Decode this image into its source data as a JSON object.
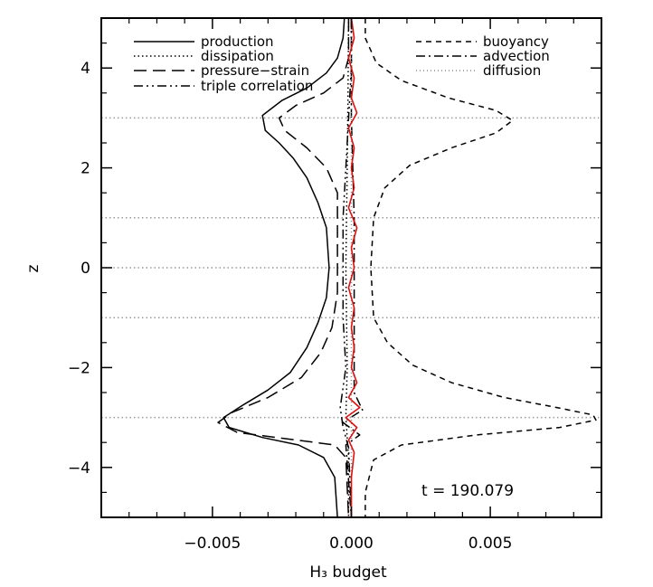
{
  "chart_data": {
    "type": "line",
    "title": "",
    "xlabel": "H₃ budget",
    "ylabel": "z",
    "xlim": [
      -0.009,
      0.009
    ],
    "ylim": [
      -5,
      5
    ],
    "grid": "horizontal dotted at integer z",
    "annotation": "t  =  190.079",
    "x_ticks": [
      "−0.005",
      "0.000",
      "0.005"
    ],
    "y_ticks": [
      "−4",
      "−2",
      "0",
      "2",
      "4"
    ],
    "legend_left": [
      "production",
      "dissipation",
      "pressure−strain",
      "triple correlation"
    ],
    "legend_right": [
      "buoyancy",
      "advection",
      "diffusion"
    ],
    "series": [
      {
        "name": "production",
        "style": "solid",
        "color": "#000000",
        "points": [
          [
            -0.00025,
            5
          ],
          [
            -0.0003,
            4.6
          ],
          [
            -0.0005,
            4.2
          ],
          [
            -0.0009,
            3.9
          ],
          [
            -0.0016,
            3.6
          ],
          [
            -0.0025,
            3.35
          ],
          [
            -0.0032,
            3.05
          ],
          [
            -0.0031,
            2.75
          ],
          [
            -0.0026,
            2.5
          ],
          [
            -0.0021,
            2.2
          ],
          [
            -0.0016,
            1.8
          ],
          [
            -0.0012,
            1.3
          ],
          [
            -0.0009,
            0.8
          ],
          [
            -0.0008,
            0.0
          ],
          [
            -0.0009,
            -0.6
          ],
          [
            -0.0012,
            -1.1
          ],
          [
            -0.0016,
            -1.6
          ],
          [
            -0.0022,
            -2.1
          ],
          [
            -0.003,
            -2.45
          ],
          [
            -0.0039,
            -2.75
          ],
          [
            -0.0046,
            -3.0
          ],
          [
            -0.0044,
            -3.2
          ],
          [
            -0.0032,
            -3.4
          ],
          [
            -0.0019,
            -3.55
          ],
          [
            -0.001,
            -3.8
          ],
          [
            -0.0006,
            -4.2
          ],
          [
            -0.0005,
            -5
          ]
        ]
      },
      {
        "name": "dissipation",
        "style": "dotted",
        "color": "#000000",
        "points": [
          [
            -0.0001,
            5
          ],
          [
            -0.00012,
            3.5
          ],
          [
            -0.00015,
            2
          ],
          [
            -0.0002,
            0
          ],
          [
            -0.00015,
            -2
          ],
          [
            -0.0002,
            -3
          ],
          [
            -0.0001,
            -3.8
          ],
          [
            -0.0001,
            -5
          ]
        ]
      },
      {
        "name": "pressure−strain",
        "style": "dashed",
        "color": "#000000",
        "points": [
          [
            -0.0001,
            5
          ],
          [
            -0.0001,
            4.2
          ],
          [
            -0.0003,
            3.8
          ],
          [
            -0.001,
            3.5
          ],
          [
            -0.002,
            3.25
          ],
          [
            -0.0026,
            3.0
          ],
          [
            -0.0024,
            2.75
          ],
          [
            -0.0016,
            2.4
          ],
          [
            -0.0009,
            2.0
          ],
          [
            -0.0005,
            1.5
          ],
          [
            -0.0005,
            0.5
          ],
          [
            -0.0005,
            -0.5
          ],
          [
            -0.0007,
            -1.2
          ],
          [
            -0.0011,
            -1.7
          ],
          [
            -0.0018,
            -2.2
          ],
          [
            -0.003,
            -2.6
          ],
          [
            -0.0043,
            -2.9
          ],
          [
            -0.0048,
            -3.1
          ],
          [
            -0.0041,
            -3.3
          ],
          [
            -0.002,
            -3.45
          ],
          [
            -0.0006,
            -3.55
          ],
          [
            -0.0002,
            -3.8
          ],
          [
            -0.0001,
            -5
          ]
        ]
      },
      {
        "name": "triple correlation",
        "style": "dash-dot-dot",
        "color": "#000000",
        "points": [
          [
            0.0,
            5
          ],
          [
            0.0,
            4.0
          ],
          [
            -0.0001,
            3.0
          ],
          [
            -0.0002,
            2.0
          ],
          [
            -0.0003,
            1.0
          ],
          [
            -0.0003,
            0.0
          ],
          [
            -0.0003,
            -1.0
          ],
          [
            -0.0002,
            -2.0
          ],
          [
            -0.0004,
            -2.8
          ],
          [
            -0.0003,
            -3.2
          ],
          [
            -0.0001,
            -3.6
          ],
          [
            0.0,
            -5
          ]
        ]
      },
      {
        "name": "buoyancy",
        "style": "short-dashed",
        "color": "#000000",
        "points": [
          [
            0.0005,
            5
          ],
          [
            0.0005,
            4.6
          ],
          [
            0.0009,
            4.1
          ],
          [
            0.0018,
            3.75
          ],
          [
            0.0035,
            3.4
          ],
          [
            0.0052,
            3.15
          ],
          [
            0.0058,
            2.95
          ],
          [
            0.0052,
            2.7
          ],
          [
            0.0036,
            2.4
          ],
          [
            0.0021,
            2.05
          ],
          [
            0.0012,
            1.6
          ],
          [
            0.0008,
            1.0
          ],
          [
            0.0007,
            0.0
          ],
          [
            0.0008,
            -1.0
          ],
          [
            0.0013,
            -1.5
          ],
          [
            0.0022,
            -1.95
          ],
          [
            0.0036,
            -2.3
          ],
          [
            0.0055,
            -2.6
          ],
          [
            0.0074,
            -2.8
          ],
          [
            0.0087,
            -2.95
          ],
          [
            0.0088,
            -3.05
          ],
          [
            0.0075,
            -3.2
          ],
          [
            0.0045,
            -3.35
          ],
          [
            0.0018,
            -3.55
          ],
          [
            0.0008,
            -3.85
          ],
          [
            0.0005,
            -4.5
          ],
          [
            0.0005,
            -5
          ]
        ]
      },
      {
        "name": "advection",
        "style": "dash-dot",
        "color": "#000000",
        "points": [
          [
            0.0,
            5
          ],
          [
            0.0,
            3.0
          ],
          [
            0.0001,
            1.0
          ],
          [
            0.0001,
            -1.0
          ],
          [
            0.0001,
            -2.5
          ],
          [
            0.0004,
            -2.85
          ],
          [
            -0.0003,
            -3.1
          ],
          [
            0.0003,
            -3.35
          ],
          [
            -0.0002,
            -3.55
          ],
          [
            0.0,
            -5
          ]
        ]
      },
      {
        "name": "diffusion",
        "style": "fine-dotted",
        "color": "#888888",
        "points": [
          [
            0.0,
            5
          ],
          [
            0.0,
            -5
          ]
        ]
      },
      {
        "name": "",
        "style": "solid",
        "color": "#dd1111",
        "points": [
          [
            0.0,
            5
          ],
          [
            0.0001,
            4.6
          ],
          [
            -0.0001,
            4.2
          ],
          [
            0.0001,
            3.8
          ],
          [
            0.0,
            3.4
          ],
          [
            0.0002,
            3.1
          ],
          [
            -0.0001,
            2.8
          ],
          [
            0.0001,
            2.4
          ],
          [
            0.0,
            2.0
          ],
          [
            0.0001,
            1.6
          ],
          [
            -0.0001,
            1.2
          ],
          [
            0.0002,
            0.8
          ],
          [
            0.0,
            0.4
          ],
          [
            0.0001,
            0.0
          ],
          [
            -0.0001,
            -0.4
          ],
          [
            0.0001,
            -0.8
          ],
          [
            0.0,
            -1.2
          ],
          [
            0.0001,
            -1.6
          ],
          [
            0.0,
            -2.0
          ],
          [
            0.0002,
            -2.3
          ],
          [
            -0.0001,
            -2.6
          ],
          [
            0.0003,
            -2.8
          ],
          [
            -0.0002,
            -3.0
          ],
          [
            0.0002,
            -3.2
          ],
          [
            -0.0001,
            -3.45
          ],
          [
            0.0001,
            -3.7
          ],
          [
            0.0,
            -4.2
          ],
          [
            0.0,
            -5
          ]
        ]
      }
    ]
  }
}
